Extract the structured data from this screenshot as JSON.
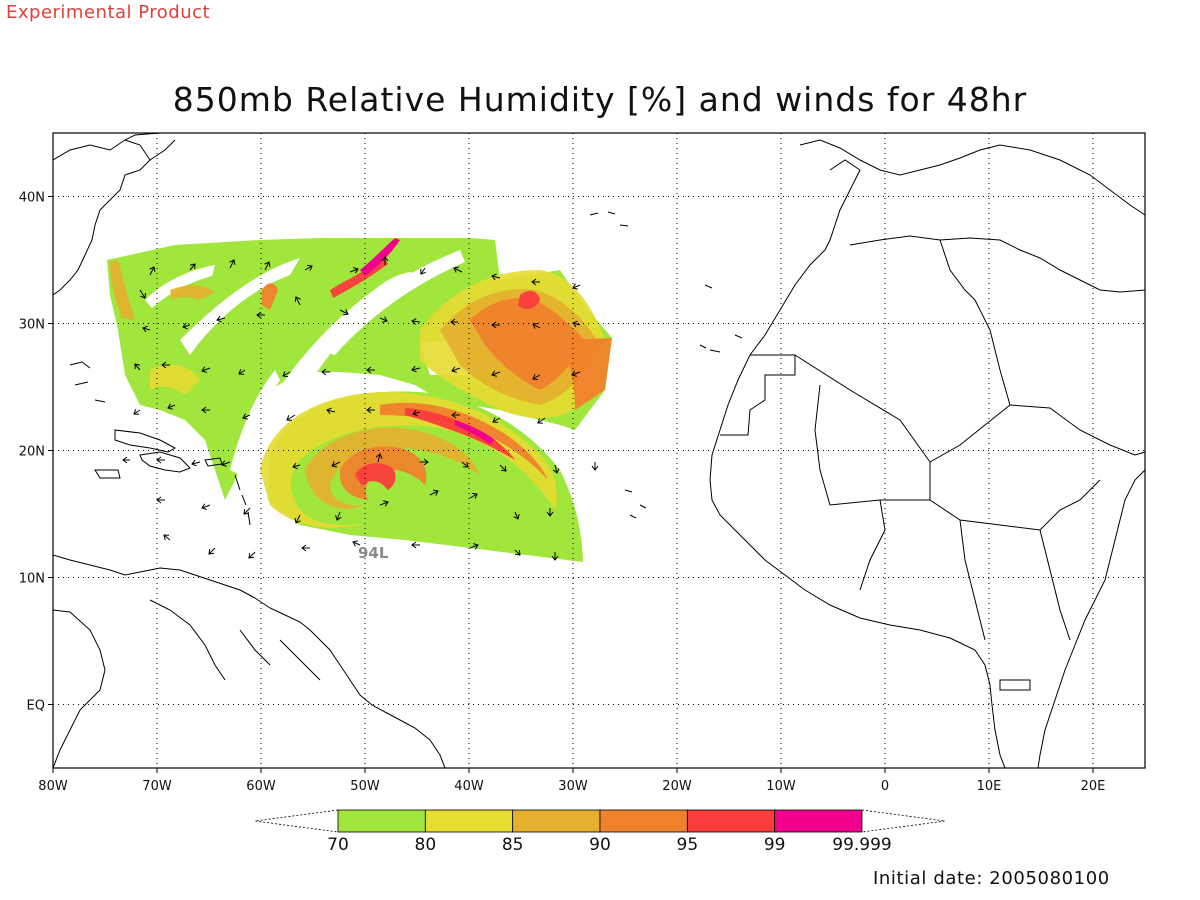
{
  "header": {
    "product_flag": "Experimental Product",
    "title": "850mb Relative Humidity [%] and winds for 48hr",
    "initial_date": "Initial date: 2005080100"
  },
  "map": {
    "projection": "lat-lon",
    "lon_range": [
      -80,
      25
    ],
    "lat_range": [
      -5,
      45
    ],
    "grid": true,
    "lon_ticks": [
      "80W",
      "70W",
      "60W",
      "50W",
      "40W",
      "30W",
      "20W",
      "10W",
      "0",
      "10E",
      "20E"
    ],
    "lat_ticks": [
      "40N",
      "30N",
      "20N",
      "10N",
      "EQ"
    ],
    "storm_label": "94L",
    "colors": {
      "coastline": "#000000",
      "grid": "#000000",
      "rh_70": "#a0e63c",
      "rh_80": "#e6dc32",
      "rh_85": "#e6af2d",
      "rh_90": "#f0822d",
      "rh_95": "#fa3c3c",
      "rh_99": "#f0008c"
    }
  },
  "colorbar": {
    "labels": [
      "70",
      "80",
      "85",
      "90",
      "95",
      "99",
      "99.999"
    ],
    "colors": [
      "#a0e63c",
      "#e6dc32",
      "#e6af2d",
      "#f0822d",
      "#fa3c3c",
      "#f0008c"
    ]
  }
}
